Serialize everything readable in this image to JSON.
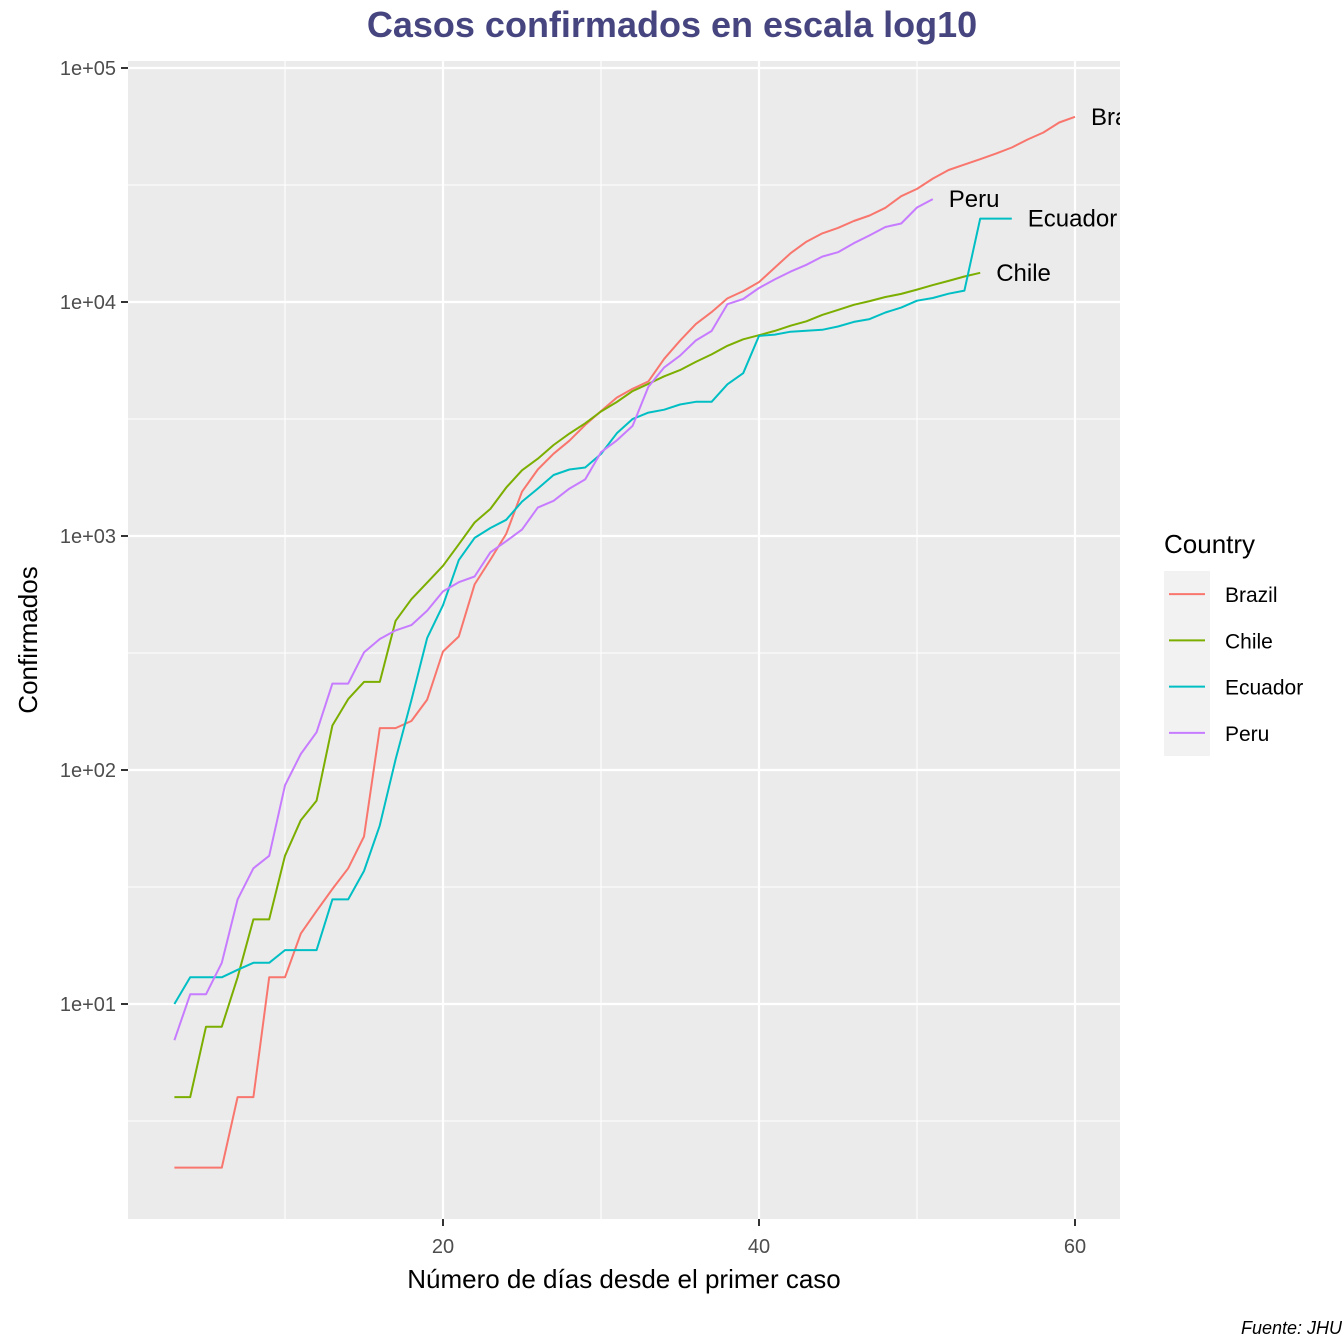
{
  "chart_data": {
    "type": "line",
    "title": "Casos confirmados en escala log10",
    "xlabel": "Número de días desde el primer caso",
    "ylabel": "Confirmados",
    "caption": "Fuente: JHU",
    "y_scale": "log10",
    "xlim": [
      1,
      63
    ],
    "ylim": [
      1.3,
      120000
    ],
    "x_ticks": [
      20,
      40,
      60
    ],
    "x_tick_labels": [
      "20",
      "40",
      "60"
    ],
    "y_ticks": [
      10,
      100,
      1000,
      10000,
      100000
    ],
    "y_tick_labels": [
      "1e+01",
      "1e+02",
      "1e+03",
      "1e+04",
      "1e+05"
    ],
    "grid": true,
    "legend": {
      "title": "Country",
      "position": "right"
    },
    "series": [
      {
        "name": "Brazil",
        "color": "#F8766D",
        "end_label": "Brazil",
        "points": [
          [
            3,
            2
          ],
          [
            4,
            2
          ],
          [
            5,
            2
          ],
          [
            6,
            2
          ],
          [
            7,
            4
          ],
          [
            8,
            4
          ],
          [
            9,
            13
          ],
          [
            10,
            13
          ],
          [
            11,
            20
          ],
          [
            12,
            25
          ],
          [
            13,
            31
          ],
          [
            14,
            38
          ],
          [
            15,
            52
          ],
          [
            16,
            151
          ],
          [
            17,
            151
          ],
          [
            18,
            162
          ],
          [
            19,
            200
          ],
          [
            20,
            321
          ],
          [
            21,
            372
          ],
          [
            22,
            621
          ],
          [
            23,
            793
          ],
          [
            24,
            1021
          ],
          [
            25,
            1546
          ],
          [
            26,
            1924
          ],
          [
            27,
            2247
          ],
          [
            28,
            2554
          ],
          [
            29,
            2985
          ],
          [
            30,
            3417
          ],
          [
            31,
            3904
          ],
          [
            32,
            4256
          ],
          [
            33,
            4579
          ],
          [
            34,
            5717
          ],
          [
            35,
            6836
          ],
          [
            36,
            8044
          ],
          [
            37,
            9056
          ],
          [
            38,
            10360
          ],
          [
            39,
            11130
          ],
          [
            40,
            12161
          ],
          [
            41,
            14034
          ],
          [
            42,
            16170
          ],
          [
            43,
            18092
          ],
          [
            44,
            19638
          ],
          [
            45,
            20727
          ],
          [
            46,
            22192
          ],
          [
            47,
            23430
          ],
          [
            48,
            25262
          ],
          [
            49,
            28320
          ],
          [
            50,
            30425
          ],
          [
            51,
            33682
          ],
          [
            52,
            36658
          ],
          [
            53,
            38654
          ],
          [
            54,
            40743
          ],
          [
            55,
            43079
          ],
          [
            56,
            45757
          ],
          [
            57,
            49492
          ],
          [
            58,
            52995
          ],
          [
            59,
            58509
          ],
          [
            60,
            61888
          ]
        ]
      },
      {
        "name": "Chile",
        "color": "#7CAE00",
        "end_label": "Chile",
        "points": [
          [
            3,
            4
          ],
          [
            4,
            4
          ],
          [
            5,
            8
          ],
          [
            6,
            8
          ],
          [
            7,
            13
          ],
          [
            8,
            23
          ],
          [
            9,
            23
          ],
          [
            10,
            43
          ],
          [
            11,
            61
          ],
          [
            12,
            74
          ],
          [
            13,
            155
          ],
          [
            14,
            201
          ],
          [
            15,
            238
          ],
          [
            16,
            238
          ],
          [
            17,
            434
          ],
          [
            18,
            537
          ],
          [
            19,
            632
          ],
          [
            20,
            746
          ],
          [
            21,
            922
          ],
          [
            22,
            1142
          ],
          [
            23,
            1306
          ],
          [
            24,
            1610
          ],
          [
            25,
            1909
          ],
          [
            26,
            2139
          ],
          [
            27,
            2449
          ],
          [
            28,
            2738
          ],
          [
            29,
            3031
          ],
          [
            30,
            3404
          ],
          [
            31,
            3737
          ],
          [
            32,
            4161
          ],
          [
            33,
            4471
          ],
          [
            34,
            4815
          ],
          [
            35,
            5116
          ],
          [
            36,
            5546
          ],
          [
            37,
            5972
          ],
          [
            38,
            6501
          ],
          [
            39,
            6927
          ],
          [
            40,
            7213
          ],
          [
            41,
            7525
          ],
          [
            42,
            7917
          ],
          [
            43,
            8273
          ],
          [
            44,
            8807
          ],
          [
            45,
            9252
          ],
          [
            46,
            9730
          ],
          [
            47,
            10088
          ],
          [
            48,
            10505
          ],
          [
            49,
            10832
          ],
          [
            50,
            11296
          ],
          [
            51,
            11812
          ],
          [
            52,
            12306
          ],
          [
            53,
            12858
          ],
          [
            54,
            13331
          ]
        ]
      },
      {
        "name": "Ecuador",
        "color": "#00BFC4",
        "end_label": "Ecuador",
        "points": [
          [
            3,
            10
          ],
          [
            4,
            13
          ],
          [
            5,
            13
          ],
          [
            6,
            13
          ],
          [
            7,
            14
          ],
          [
            8,
            15
          ],
          [
            9,
            15
          ],
          [
            10,
            17
          ],
          [
            11,
            17
          ],
          [
            12,
            17
          ],
          [
            13,
            28
          ],
          [
            14,
            28
          ],
          [
            15,
            37
          ],
          [
            16,
            58
          ],
          [
            17,
            111
          ],
          [
            18,
            199
          ],
          [
            19,
            367
          ],
          [
            20,
            506
          ],
          [
            21,
            789
          ],
          [
            22,
            981
          ],
          [
            23,
            1082
          ],
          [
            24,
            1173
          ],
          [
            25,
            1403
          ],
          [
            26,
            1595
          ],
          [
            27,
            1823
          ],
          [
            28,
            1924
          ],
          [
            29,
            1962
          ],
          [
            30,
            2240
          ],
          [
            31,
            2748
          ],
          [
            32,
            3163
          ],
          [
            33,
            3368
          ],
          [
            34,
            3465
          ],
          [
            35,
            3646
          ],
          [
            36,
            3747
          ],
          [
            37,
            3747
          ],
          [
            38,
            4450
          ],
          [
            39,
            4965
          ],
          [
            40,
            7161
          ],
          [
            41,
            7257
          ],
          [
            42,
            7466
          ],
          [
            43,
            7529
          ],
          [
            44,
            7603
          ],
          [
            45,
            7858
          ],
          [
            46,
            8225
          ],
          [
            47,
            8450
          ],
          [
            48,
            9022
          ],
          [
            49,
            9468
          ],
          [
            50,
            10128
          ],
          [
            51,
            10398
          ],
          [
            52,
            10850
          ],
          [
            53,
            11183
          ],
          [
            54,
            22719
          ],
          [
            55,
            22719
          ],
          [
            56,
            22719
          ]
        ]
      },
      {
        "name": "Peru",
        "color": "#C77CFF",
        "end_label": "Peru",
        "points": [
          [
            3,
            7
          ],
          [
            4,
            11
          ],
          [
            5,
            11
          ],
          [
            6,
            15
          ],
          [
            7,
            28
          ],
          [
            8,
            38
          ],
          [
            9,
            43
          ],
          [
            10,
            86
          ],
          [
            11,
            117
          ],
          [
            12,
            145
          ],
          [
            13,
            234
          ],
          [
            14,
            234
          ],
          [
            15,
            318
          ],
          [
            16,
            363
          ],
          [
            17,
            395
          ],
          [
            18,
            416
          ],
          [
            19,
            480
          ],
          [
            20,
            580
          ],
          [
            21,
            635
          ],
          [
            22,
            671
          ],
          [
            23,
            852
          ],
          [
            24,
            950
          ],
          [
            25,
            1065
          ],
          [
            26,
            1323
          ],
          [
            27,
            1414
          ],
          [
            28,
            1595
          ],
          [
            29,
            1746
          ],
          [
            30,
            2281
          ],
          [
            31,
            2561
          ],
          [
            32,
            2954
          ],
          [
            33,
            4342
          ],
          [
            34,
            5256
          ],
          [
            35,
            5897
          ],
          [
            36,
            6848
          ],
          [
            37,
            7519
          ],
          [
            38,
            9784
          ],
          [
            39,
            10303
          ],
          [
            40,
            11475
          ],
          [
            41,
            12491
          ],
          [
            42,
            13489
          ],
          [
            43,
            14420
          ],
          [
            44,
            15628
          ],
          [
            45,
            16325
          ],
          [
            46,
            17837
          ],
          [
            47,
            19250
          ],
          [
            48,
            20914
          ],
          [
            49,
            21648
          ],
          [
            50,
            25331
          ],
          [
            51,
            27517
          ]
        ]
      }
    ]
  }
}
